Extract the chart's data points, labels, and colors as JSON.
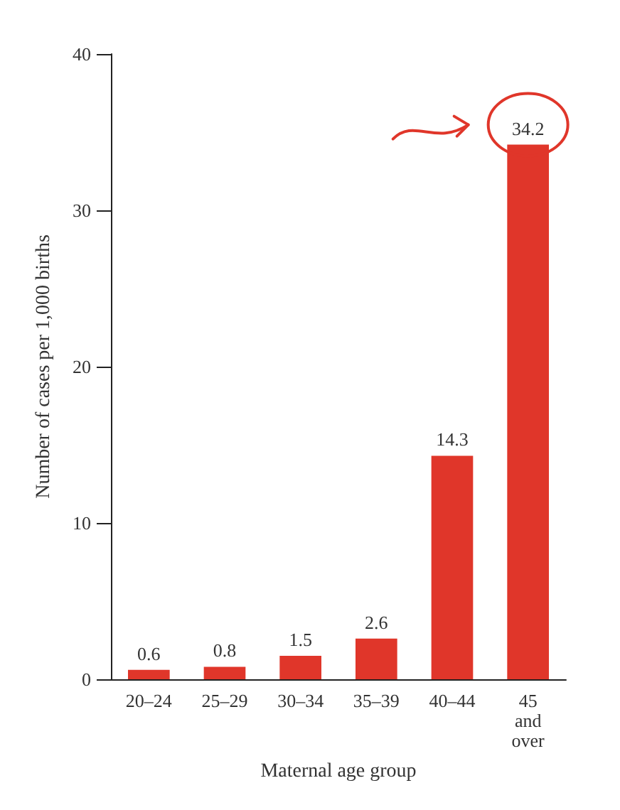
{
  "chart_data": {
    "type": "bar",
    "xlabel": "Maternal age group",
    "ylabel": "Number of cases per 1,000 births",
    "categories": [
      "20–24",
      "25–29",
      "30–34",
      "35–39",
      "40–44",
      "45\nand\nover"
    ],
    "values": [
      0.6,
      0.8,
      1.5,
      2.6,
      14.3,
      34.2
    ],
    "color": "#e0362a",
    "ylim": [
      0,
      40
    ],
    "yticks": [
      0,
      10,
      20,
      30,
      40
    ],
    "data_labels": true,
    "grid": false
  }
}
